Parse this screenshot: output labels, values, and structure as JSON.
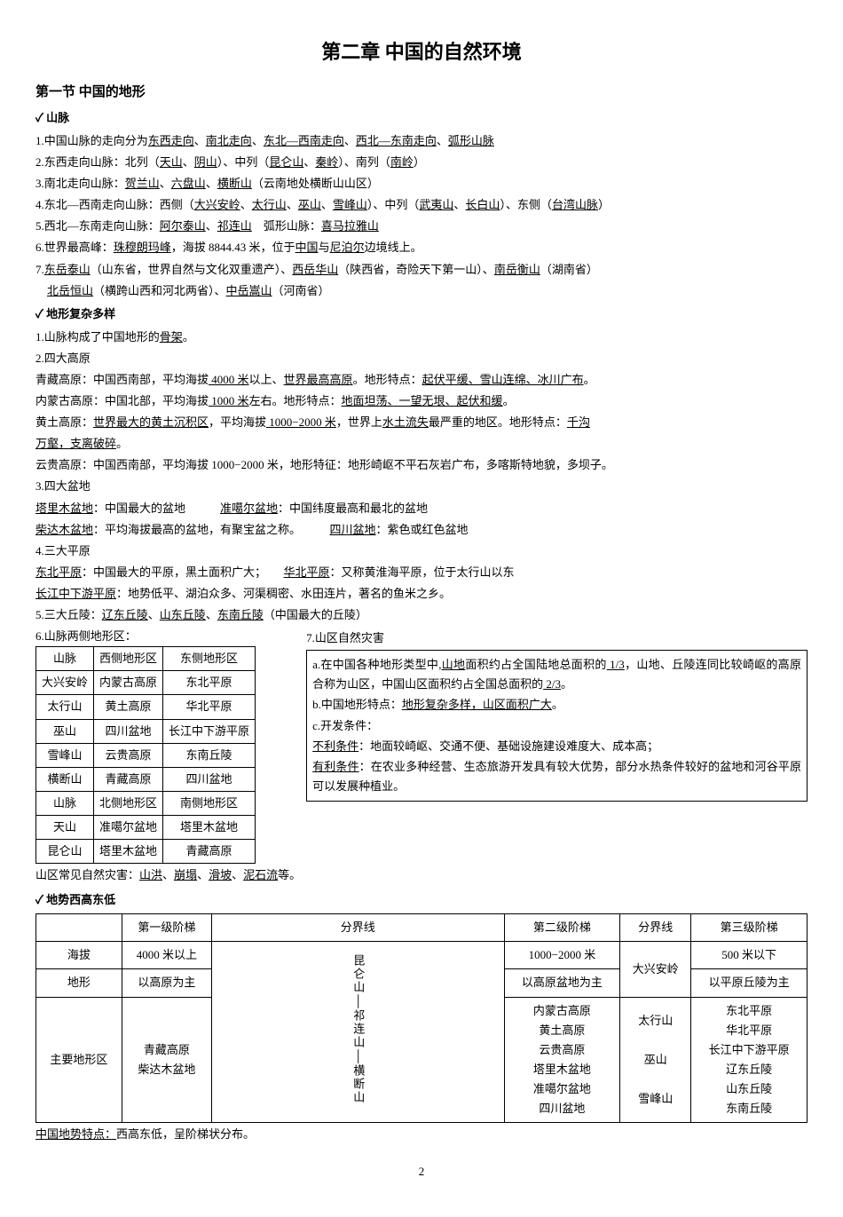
{
  "title": "第二章 中国的自然环境",
  "section1": {
    "heading": "第一节 中国的地形",
    "sub_mountains": "山脉",
    "p1_a": "1.中国山脉的走向分为",
    "p1_u1": "东西走向",
    "p1_b": "、",
    "p1_u2": "南北走向",
    "p1_c": "、",
    "p1_u3": "东北—西南走向",
    "p1_d": "、",
    "p1_u4": "西北—东南走向",
    "p1_e": "、",
    "p1_u5": "弧形山脉",
    "p2_a": "2.东西走向山脉：北列（",
    "p2_u1": "天山",
    "p2_b": "、",
    "p2_u2": "阴山",
    "p2_c": "）、中列（",
    "p2_u3": "昆仑山",
    "p2_d": "、",
    "p2_u4": "秦岭",
    "p2_e": "）、南列（",
    "p2_u5": "南岭",
    "p2_f": "）",
    "p3_a": "3.南北走向山脉：",
    "p3_u1": "贺兰山",
    "p3_b": "、",
    "p3_u2": "六盘山",
    "p3_c": "、",
    "p3_u3": "横断山",
    "p3_d": "（云南地处横断山山区）",
    "p4_a": "4.东北—西南走向山脉：西侧（",
    "p4_u1": "大兴安岭",
    "p4_b": "、",
    "p4_u2": "太行山",
    "p4_c": "、",
    "p4_u3": "巫山",
    "p4_d": "、",
    "p4_u4": "雪峰山",
    "p4_e": "）、中列（",
    "p4_u5": "武夷山",
    "p4_f": "、",
    "p4_u6": "长白山",
    "p4_g": "）、东侧（",
    "p4_u7": "台湾山脉",
    "p4_h": "）",
    "p5_a": "5.西北—东南走向山脉：",
    "p5_u1": "阿尔泰山",
    "p5_b": "、",
    "p5_u2": "祁连山",
    "p5_c": "　弧形山脉：",
    "p5_u3": "喜马拉雅山",
    "p6_a": "6.世界最高峰：",
    "p6_u1": "珠穆朗玛峰",
    "p6_b": "，海拔 8844.43 米，位于",
    "p6_u2": "中国",
    "p6_c": "与",
    "p6_u3": "尼泊尔",
    "p6_d": "边境线上。",
    "p7_a": "7.",
    "p7_u1": "东岳泰山",
    "p7_b": "（山东省，世界自然与文化双重遗产）、",
    "p7_u2": "西岳华山",
    "p7_c": "（陕西省，奇险天下第一山）、",
    "p7_u3": "南岳衡山",
    "p7_d": "（湖南省）",
    "p7line2_u1": "北岳恒山",
    "p7line2_a": "（横跨山西和河北两省）、",
    "p7line2_u2": "中岳嵩山",
    "p7line2_b": "（河南省）",
    "sub_terrain": "地形复杂多样",
    "t1": "1.山脉构成了中国地形的",
    "t1_u": "骨架",
    "t1_end": "。",
    "t2": "2.四大高原",
    "plateau1_a": "青藏高原：中国西南部，平均海拔",
    "plateau1_u1": " 4000 米",
    "plateau1_b": "以上、",
    "plateau1_u2": "世界最高高原",
    "plateau1_c": "。地形特点：",
    "plateau1_u3": "起伏平缓、雪山连绵、冰川广布",
    "plateau1_d": "。",
    "plateau2_a": "内蒙古高原：中国北部，平均海拔",
    "plateau2_u1": " 1000 米",
    "plateau2_b": "左右。地形特点：",
    "plateau2_u2": "地面坦荡、一望无垠、起伏和缓",
    "plateau2_c": "。",
    "plateau3_a": "黄土高原：",
    "plateau3_u1": "世界最大的黄土沉积区",
    "plateau3_b": "，平均海拔",
    "plateau3_u2": " 1000−2000 米",
    "plateau3_c": "，世界上",
    "plateau3_u3": "水土流失",
    "plateau3_d": "最严重的地区。地形特点：",
    "plateau3_u4": "千沟",
    "plateau3_line2_u": "万壑，支离破碎",
    "plateau3_line2_end": "。",
    "plateau4": "云贵高原：中国西南部，平均海拔 1000−2000 米，地形特征：地形崎岖不平石灰岩广布，多喀斯特地貌，多坝子。",
    "t3": "3.四大盆地",
    "basin1_u": "塔里木盆地",
    "basin1_a": "：中国最大的盆地　　　",
    "basin1b_u": "准噶尔盆地",
    "basin1b_a": "：中国纬度最高和最北的盆地",
    "basin2_u": "柴达木盆地",
    "basin2_a": "：平均海拔最高的盆地，有聚宝盆之称。　　　",
    "basin2b_u": "四川盆地",
    "basin2b_a": "：紫色或红色盆地",
    "t4": "4.三大平原",
    "plain1_u": "东北平原",
    "plain1_a": "：中国最大的平原，黑土面积广大；　　",
    "plain1b_u": "华北平原",
    "plain1b_a": "：又称黄淮海平原，位于太行山以东",
    "plain2_u": "长江中下游平原",
    "plain2_a": "：地势低平、湖泊众多、河渠稠密、水田连片，著名的鱼米之乡。",
    "t5_a": "5.三大丘陵：",
    "t5_u1": "辽东丘陵",
    "t5_b": "、",
    "t5_u2": "山东丘陵",
    "t5_c": "、",
    "t5_u3": "东南丘陵",
    "t5_d": "（中国最大的丘陵）",
    "t6": "6.山脉两侧地形区：",
    "t7": "7.山区自然灾害"
  },
  "table6": {
    "headers": [
      "山脉",
      "西侧地形区",
      "东侧地形区"
    ],
    "rows": [
      [
        "大兴安岭",
        "内蒙古高原",
        "东北平原"
      ],
      [
        "太行山",
        "黄土高原",
        "华北平原"
      ],
      [
        "巫山",
        "四川盆地",
        "长江中下游平原"
      ],
      [
        "雪峰山",
        "云贵高原",
        "东南丘陵"
      ],
      [
        "横断山",
        "青藏高原",
        "四川盆地"
      ]
    ],
    "headers2": [
      "山脉",
      "北侧地形区",
      "南侧地形区"
    ],
    "rows2": [
      [
        "天山",
        "准噶尔盆地",
        "塔里木盆地"
      ],
      [
        "昆仑山",
        "塔里木盆地",
        "青藏高原"
      ]
    ]
  },
  "box7": {
    "a1": "a.在中国各种地形类型中,",
    "a_u1": "山地",
    "a2": "面积约占全国陆地总面积的",
    "a_u2": " 1/3",
    "a3": "，山地、丘陵连同比较崎岖的高原合称为山区，中国山区面积约占全国总面积的",
    "a_u3": " 2/3",
    "a4": "。",
    "b1": "b.中国地形特点：",
    "b_u": "地形复杂多样，山区面积广大",
    "b2": "。",
    "c": "c.开发条件：",
    "c_adv_u": "不利条件",
    "c_adv": "：地面较崎岖、交通不便、基础设施建设难度大、成本高；",
    "c_good_u": "有利条件",
    "c_good": "：在农业多种经营、生态旅游开发具有较大优势，部分水热条件较好的盆地和河谷平原可以发展种植业。"
  },
  "after_table": "山区常见自然灾害：",
  "after_table_u1": "山洪",
  "after_table_s1": "、",
  "after_table_u2": "崩塌",
  "after_table_s2": "、",
  "after_table_u3": "滑坡",
  "after_table_s3": "、",
  "after_table_u4": "泥石流",
  "after_table_end": "等。",
  "sub_terrain2": "地势西高东低",
  "bigtable": {
    "h1": "第一级阶梯",
    "h2": "分界线",
    "h3": "第二级阶梯",
    "h4": "分界线",
    "h5": "第三级阶梯",
    "r1_label": "海拔",
    "r1_c1": "4000 米以上",
    "r1_c2": "1000−2000 米",
    "r1_c3": "500 米以下",
    "r2_label": "地形",
    "r2_c1": "以高原为主",
    "r2_c2": "以高原盆地为主",
    "r2_c3": "以平原丘陵为主",
    "r3_label": "主要地形区",
    "r3_c1": "青藏高原\n柴达木盆地",
    "div1": "昆仑山│祁连山│横断山",
    "r3_c2_1": "内蒙古高原",
    "r3_c2_2": "黄土高原",
    "r3_c2_3": "云贵高原",
    "r3_c2_4": "塔里木盆地",
    "r3_c2_5": "准噶尔盆地",
    "r3_c2_6": "四川盆地",
    "div2": "大兴安岭",
    "div2_1": "太行山",
    "div2_2": "巫山",
    "div2_3": "雪峰山",
    "r3_c3_1": "东北平原",
    "r3_c3_2": "华北平原",
    "r3_c3_3": "长江中下游平原",
    "r3_c3_4": "辽东丘陵",
    "r3_c3_5": "山东丘陵",
    "r3_c3_6": "东南丘陵"
  },
  "last_line_u": "中国地势特点：",
  "last_line": "西高东低，呈阶梯状分布。",
  "pagenum": "2"
}
